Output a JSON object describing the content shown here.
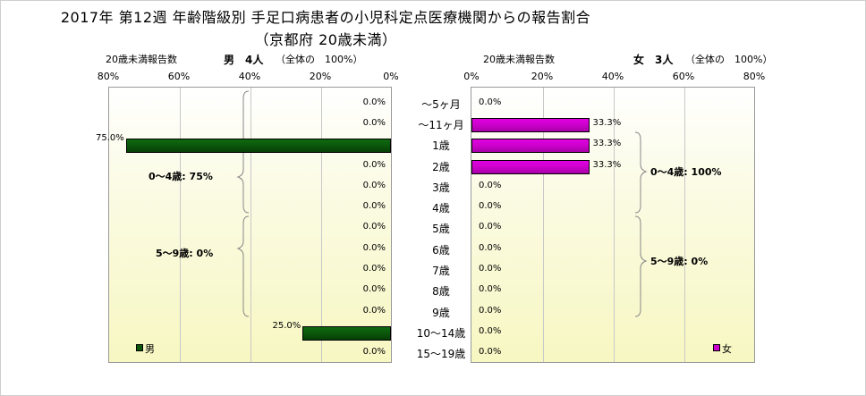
{
  "title_line1": "2017年 第12週 年齢階級別 手足口病患者の小児科定点医療機関からの報告割合",
  "title_line2": "（京都府 20歳未満）",
  "left_header": {
    "label": "20歳未満報告数",
    "sex_count": "男　4人",
    "total": "（全体の　100%）"
  },
  "right_header": {
    "label": "20歳未満報告数",
    "sex_count": "女　3人",
    "total": "（全体の　100%）"
  },
  "chart_data": [
    {
      "type": "bar",
      "orientation": "horizontal-reversed",
      "series": [
        {
          "name": "男",
          "values": [
            0,
            0,
            75,
            0,
            0,
            0,
            0,
            0,
            0,
            0,
            0,
            25,
            0
          ]
        }
      ],
      "categories": [
        "～5ヶ月",
        "～11ヶ月",
        "1歳",
        "2歳",
        "3歳",
        "4歳",
        "5歳",
        "6歳",
        "7歳",
        "8歳",
        "9歳",
        "10～14歳",
        "15～19歳"
      ],
      "value_labels": [
        "0.0%",
        "0.0%",
        "75.0%",
        "0.0%",
        "0.0%",
        "0.0%",
        "0.0%",
        "0.0%",
        "0.0%",
        "0.0%",
        "0.0%",
        "25.0%",
        "0.0%"
      ],
      "xlim": [
        0,
        80
      ],
      "x_ticks": [
        "80%",
        "60%",
        "40%",
        "20%",
        "0%"
      ],
      "groups": [
        "0～4歳: 75%",
        "5～9歳: 0%"
      ],
      "legend_position": "bottom-left",
      "color": "#0b560b"
    },
    {
      "type": "bar",
      "orientation": "horizontal",
      "series": [
        {
          "name": "女",
          "values": [
            0,
            33.3,
            33.3,
            33.3,
            0,
            0,
            0,
            0,
            0,
            0,
            0,
            0,
            0
          ]
        }
      ],
      "categories": [
        "～5ヶ月",
        "～11ヶ月",
        "1歳",
        "2歳",
        "3歳",
        "4歳",
        "5歳",
        "6歳",
        "7歳",
        "8歳",
        "9歳",
        "10～14歳",
        "15～19歳"
      ],
      "value_labels": [
        "0.0%",
        "33.3%",
        "33.3%",
        "33.3%",
        "0.0%",
        "0.0%",
        "0.0%",
        "0.0%",
        "0.0%",
        "0.0%",
        "0.0%",
        "0.0%",
        "0.0%"
      ],
      "xlim": [
        0,
        80
      ],
      "x_ticks": [
        "0%",
        "20%",
        "40%",
        "60%",
        "80%"
      ],
      "groups": [
        "0～4歳: 100%",
        "5～9歳: 0%"
      ],
      "legend_position": "bottom-right",
      "color": "#cc00cc"
    }
  ]
}
